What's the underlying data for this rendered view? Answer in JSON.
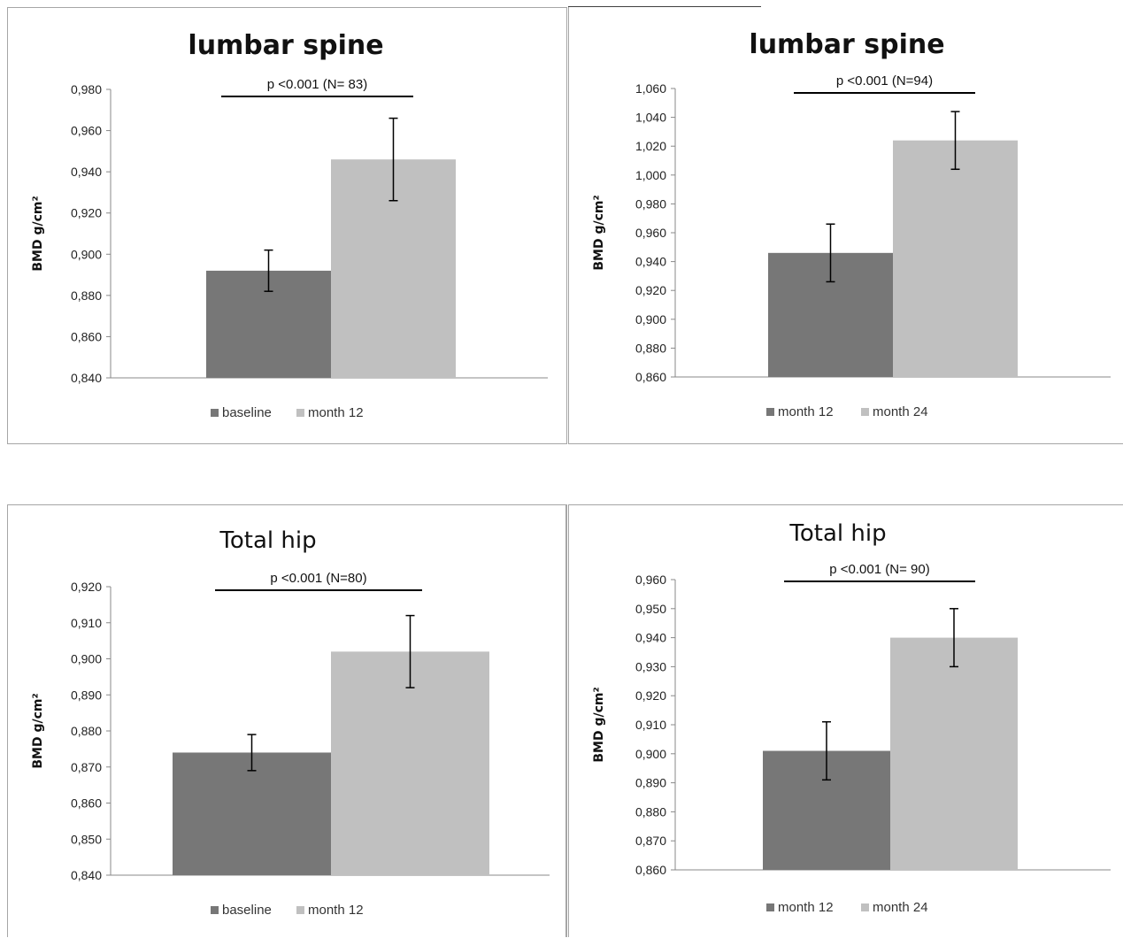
{
  "chart_data": [
    {
      "type": "bar",
      "title": "lumbar spine",
      "title_bold": true,
      "ylabel": "BMD g/cm²",
      "ylim": [
        0.84,
        0.98
      ],
      "yticks": [
        "0,840",
        "0,860",
        "0,880",
        "0,900",
        "0,920",
        "0,940",
        "0,960",
        "0,980"
      ],
      "series": [
        {
          "name": "baseline",
          "value": 0.892,
          "error": 0.01,
          "color": "#777777"
        },
        {
          "name": "month 12",
          "value": 0.946,
          "error": 0.02,
          "color": "#c0c0c0"
        }
      ],
      "annotation": "p <0.001 (N= 83)",
      "legend_position": "bottom",
      "grid": false
    },
    {
      "type": "bar",
      "title": "lumbar spine",
      "title_bold": true,
      "ylabel": "BMD g/cm²",
      "ylim": [
        0.86,
        1.06
      ],
      "yticks": [
        "0,860",
        "0,880",
        "0,900",
        "0,920",
        "0,940",
        "0,960",
        "0,980",
        "1,000",
        "1,020",
        "1,040",
        "1,060"
      ],
      "series": [
        {
          "name": "month 12",
          "value": 0.946,
          "error": 0.02,
          "color": "#777777"
        },
        {
          "name": "month 24",
          "value": 1.024,
          "error": 0.02,
          "color": "#c0c0c0"
        }
      ],
      "annotation": "p <0.001 (N=94)",
      "legend_position": "bottom",
      "grid": false
    },
    {
      "type": "bar",
      "title": "Total hip",
      "title_bold": false,
      "ylabel": "BMD g/cm²",
      "ylim": [
        0.84,
        0.92
      ],
      "yticks": [
        "0,840",
        "0,850",
        "0,860",
        "0,870",
        "0,880",
        "0,890",
        "0,900",
        "0,910",
        "0,920"
      ],
      "series": [
        {
          "name": "baseline",
          "value": 0.874,
          "error": 0.005,
          "color": "#777777"
        },
        {
          "name": "month 12",
          "value": 0.902,
          "error": 0.01,
          "color": "#c0c0c0"
        }
      ],
      "annotation": "p <0.001 (N=80)",
      "legend_position": "bottom",
      "grid": false
    },
    {
      "type": "bar",
      "title": "Total hip",
      "title_bold": false,
      "ylabel": "BMD g/cm²",
      "ylim": [
        0.86,
        0.96
      ],
      "yticks": [
        "0,860",
        "0,870",
        "0,880",
        "0,890",
        "0,900",
        "0,910",
        "0,920",
        "0,930",
        "0,940",
        "0,950",
        "0,960"
      ],
      "series": [
        {
          "name": "month 12",
          "value": 0.901,
          "error": 0.01,
          "color": "#777777"
        },
        {
          "name": "month 24",
          "value": 0.94,
          "error": 0.01,
          "color": "#c0c0c0"
        }
      ],
      "annotation": "p <0.001 (N= 90)",
      "legend_position": "bottom",
      "grid": false
    }
  ]
}
